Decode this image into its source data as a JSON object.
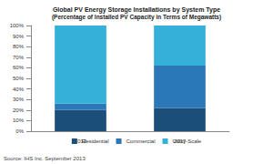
{
  "chart_data": {
    "type": "bar",
    "title": "Global PV Energy Storage Installations by System Type",
    "subtitle": "(Percentage of Installed PV Capacity in Terms of Megawatts)",
    "annotations": [
      "Source: IHS Inc. September 2013"
    ],
    "categories": [
      "2012",
      "2017"
    ],
    "series": [
      {
        "name": "Residential",
        "color": "#1b4f7a",
        "values": [
          20,
          22
        ]
      },
      {
        "name": "Commercial",
        "color": "#2b78b8",
        "values": [
          6,
          40
        ]
      },
      {
        "name": "Utility-Scale",
        "color": "#35b0d8",
        "values": [
          74,
          38
        ]
      }
    ],
    "stacked": true,
    "ylim": [
      0,
      100
    ],
    "yticks": [
      {
        "value": 0,
        "label": "0%"
      },
      {
        "value": 10,
        "label": "10%"
      },
      {
        "value": 20,
        "label": "20%"
      },
      {
        "value": 30,
        "label": "30%"
      },
      {
        "value": 40,
        "label": "40%"
      },
      {
        "value": 50,
        "label": "50%"
      },
      {
        "value": 60,
        "label": "60%"
      },
      {
        "value": 70,
        "label": "70%"
      },
      {
        "value": 80,
        "label": "80%"
      },
      {
        "value": 90,
        "label": "90%"
      },
      {
        "value": 100,
        "label": "100%"
      }
    ],
    "grid": false,
    "legend": "bottom"
  }
}
